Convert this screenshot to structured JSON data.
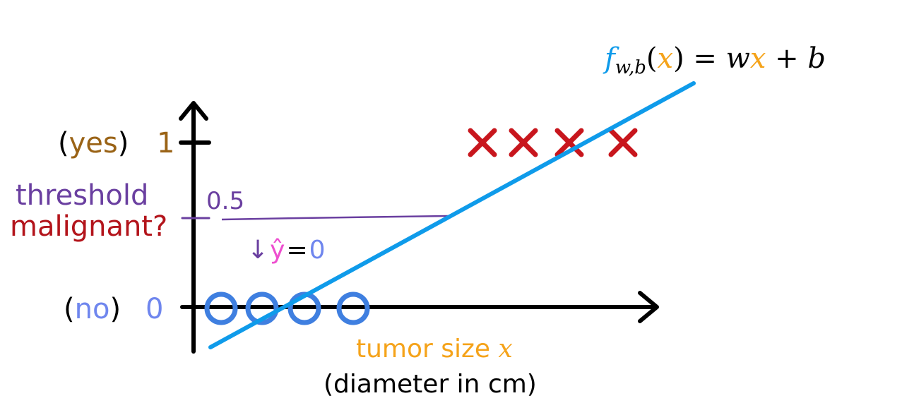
{
  "colors": {
    "axis": "#000000",
    "regression_line": "#0f9bea",
    "cross": "#c8161d",
    "circle": "#3f7fe0",
    "yes_label": "#9a6316",
    "no_label": "#6f86ee",
    "threshold": "#6a3fa0",
    "malignant": "#b3141b",
    "tumor_label": "#f5a31a",
    "formula_black": "#000000",
    "formula_blue": "#0f9bea",
    "formula_orange": "#f5a31a",
    "yhat_pink": "#ee4fcf",
    "zero_blue": "#6f86ee"
  },
  "formula": {
    "f": "f",
    "subscript": "w,b",
    "open_paren": "(",
    "x": "x",
    "close_paren": ")",
    "equals": " = ",
    "w": "w",
    "x2": "x",
    "plus_b": " + b"
  },
  "y_axis": {
    "yes_open": "(",
    "yes_word": "yes",
    "yes_close": ")",
    "one": "1",
    "no_open": "(",
    "no_word": "no",
    "no_close": ")",
    "zero": "0"
  },
  "threshold": {
    "label": "threshold",
    "question": "malignant?",
    "value": "0.5",
    "arrow": "↓",
    "yhat": "ŷ",
    "equals": "=",
    "prediction": "0"
  },
  "x_axis": {
    "label": "tumor size ",
    "var": "x",
    "sublabel": "(diameter in cm)"
  },
  "chart_data": {
    "type": "scatter",
    "x_axis_label": "tumor size x",
    "y_axis_ticks": [
      "0",
      "1"
    ],
    "series": [
      {
        "marker": "circle",
        "y": 0,
        "x": [
          1,
          2,
          3,
          4
        ]
      },
      {
        "marker": "cross",
        "y": 1,
        "x": [
          7,
          8,
          9,
          10
        ]
      }
    ],
    "regression_line": {
      "label": "f_w,b(x) = wx + b"
    },
    "threshold": 0.5
  }
}
